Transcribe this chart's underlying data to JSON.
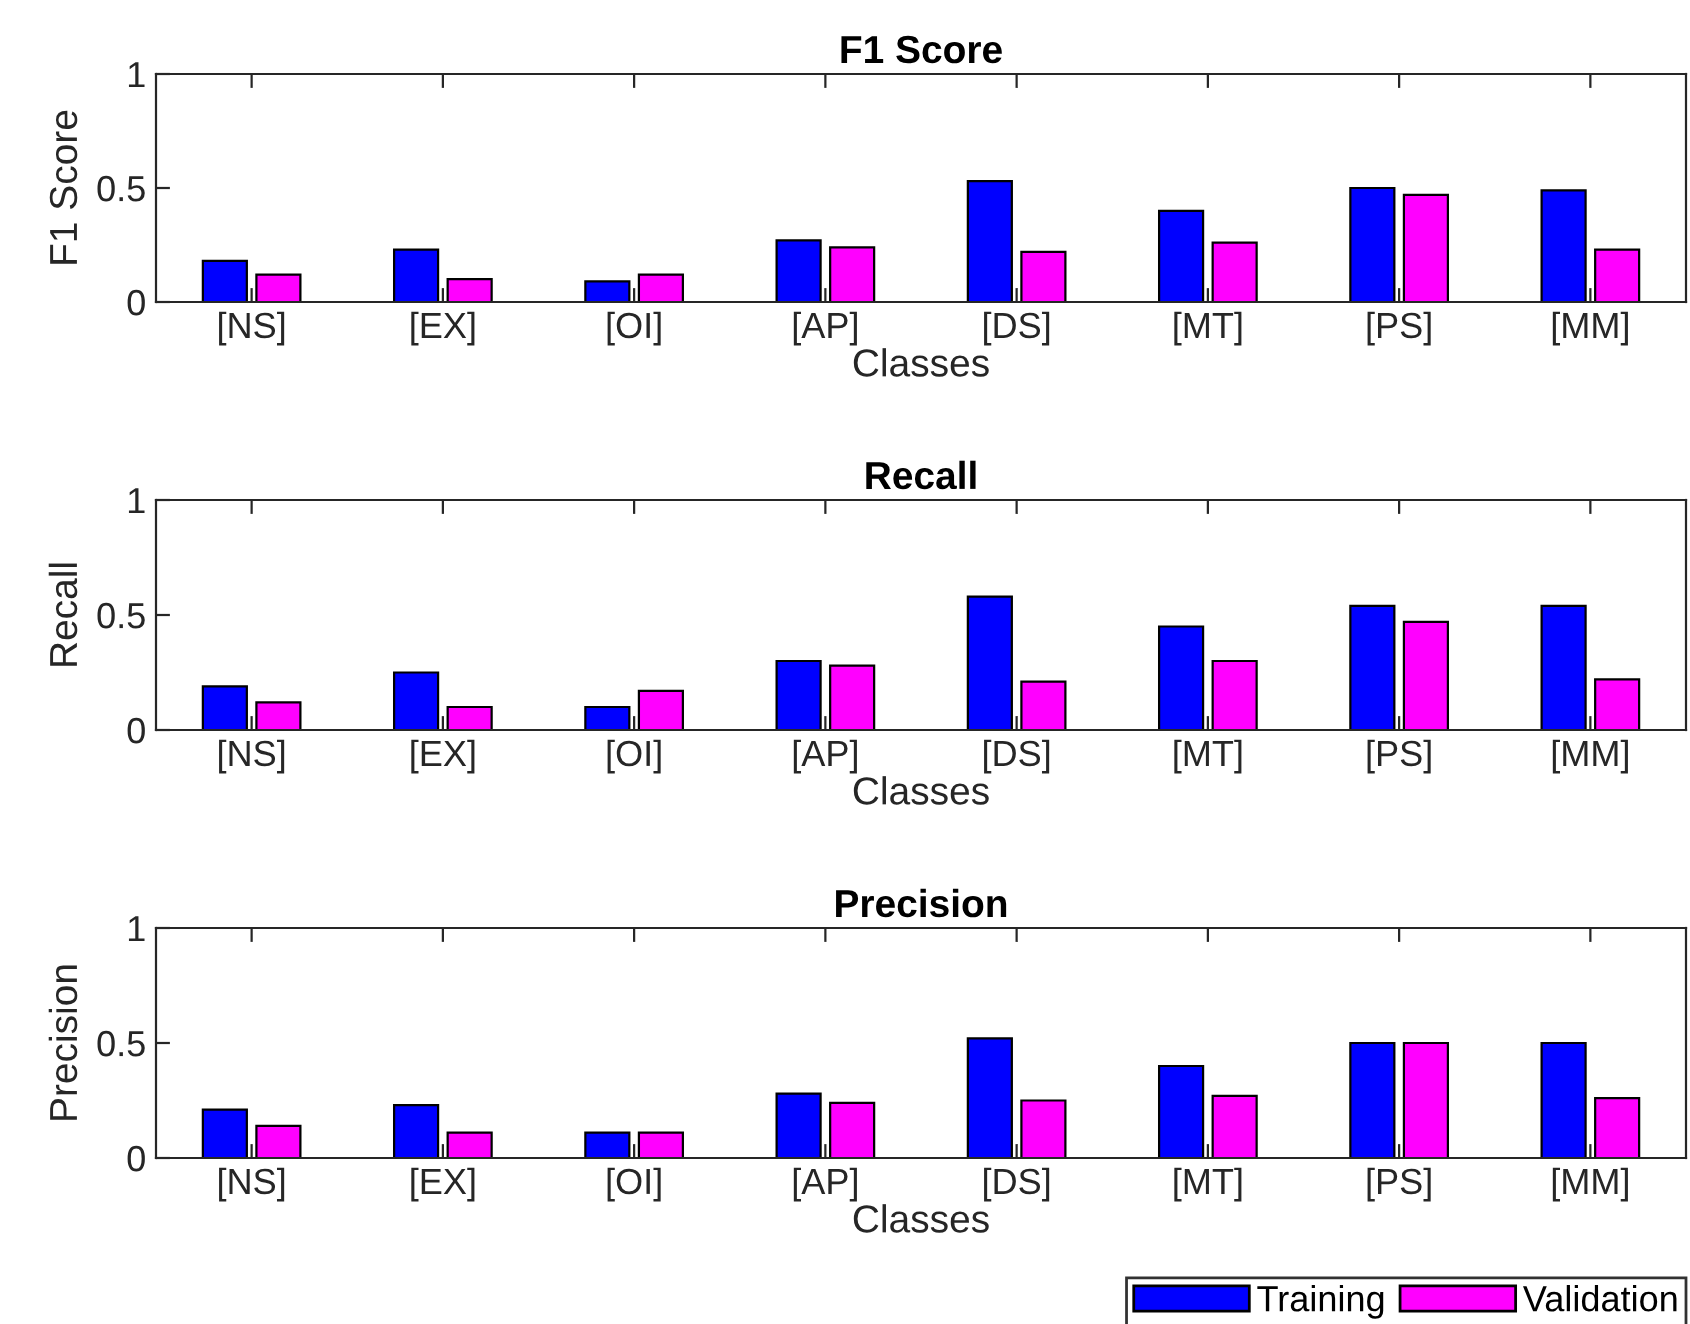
{
  "chart_data": [
    {
      "type": "bar",
      "title": "F1 Score",
      "xlabel": "Classes",
      "ylabel": "F1 Score",
      "categories": [
        "[NS]",
        "[EX]",
        "[OI]",
        "[AP]",
        "[DS]",
        "[MT]",
        "[PS]",
        "[MM]"
      ],
      "ylim": [
        0,
        1
      ],
      "yticks": [
        0,
        0.5,
        1
      ],
      "grid": false,
      "legend": false,
      "series": [
        {
          "color": "#0000ff",
          "values": [
            0.18,
            0.23,
            0.09,
            0.27,
            0.53,
            0.4,
            0.5,
            0.49
          ]
        },
        {
          "color": "#ff00ff",
          "values": [
            0.12,
            0.1,
            0.12,
            0.24,
            0.22,
            0.26,
            0.47,
            0.23
          ]
        }
      ]
    },
    {
      "type": "bar",
      "title": "Recall",
      "xlabel": "Classes",
      "ylabel": "Recall",
      "categories": [
        "[NS]",
        "[EX]",
        "[OI]",
        "[AP]",
        "[DS]",
        "[MT]",
        "[PS]",
        "[MM]"
      ],
      "ylim": [
        0,
        1
      ],
      "yticks": [
        0,
        0.5,
        1
      ],
      "grid": false,
      "legend": false,
      "series": [
        {
          "color": "#0000ff",
          "values": [
            0.19,
            0.25,
            0.1,
            0.3,
            0.58,
            0.45,
            0.54,
            0.54
          ]
        },
        {
          "color": "#ff00ff",
          "values": [
            0.12,
            0.1,
            0.17,
            0.28,
            0.21,
            0.3,
            0.47,
            0.22
          ]
        }
      ]
    },
    {
      "type": "bar",
      "title": "Precision",
      "xlabel": "Classes",
      "ylabel": "Precision",
      "categories": [
        "[NS]",
        "[EX]",
        "[OI]",
        "[AP]",
        "[DS]",
        "[MT]",
        "[PS]",
        "[MM]"
      ],
      "ylim": [
        0,
        1
      ],
      "yticks": [
        0,
        0.5,
        1
      ],
      "grid": false,
      "legend": "bottom right",
      "series": [
        {
          "name": "Training",
          "color": "#0000ff",
          "values": [
            0.21,
            0.23,
            0.11,
            0.28,
            0.52,
            0.4,
            0.5,
            0.5
          ]
        },
        {
          "name": "Validation",
          "color": "#ff00ff",
          "values": [
            0.14,
            0.11,
            0.11,
            0.24,
            0.25,
            0.27,
            0.5,
            0.26
          ]
        }
      ]
    }
  ]
}
